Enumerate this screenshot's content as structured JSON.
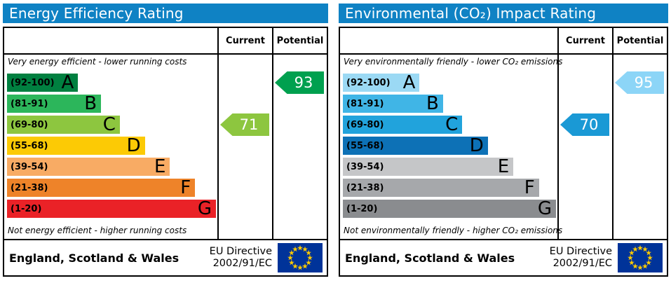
{
  "theme": {
    "header_bg": "#0f82c4",
    "border": "#000000",
    "arrow_text": "#ffffff"
  },
  "chart_data": [
    {
      "type": "bar",
      "title": "Energy Efficiency Rating",
      "categories": [
        "A (92-100)",
        "B (81-91)",
        "C (69-80)",
        "D (55-68)",
        "E (39-54)",
        "F (21-38)",
        "G (1-20)"
      ],
      "scale_range": [
        1,
        100
      ],
      "current": 71,
      "potential": 93,
      "current_band": "C",
      "potential_band": "A",
      "legend_position": "top-right-columns"
    },
    {
      "type": "bar",
      "title": "Environmental (CO₂) Impact Rating",
      "categories": [
        "A (92-100)",
        "B (81-91)",
        "C (69-80)",
        "D (55-68)",
        "E (39-54)",
        "F (21-38)",
        "G (1-20)"
      ],
      "scale_range": [
        1,
        100
      ],
      "current": 70,
      "potential": 95,
      "current_band": "C",
      "potential_band": "A",
      "legend_position": "top-right-columns"
    }
  ],
  "panels": [
    {
      "title": "Energy Efficiency Rating",
      "columns": {
        "current": "Current",
        "potential": "Potential"
      },
      "caption_top": "Very energy efficient - lower running costs",
      "caption_bottom": "Not energy efficient - higher running costs",
      "bands": [
        {
          "range": "(92-100)",
          "letter": "A",
          "color": "#008040",
          "width_pct": 34
        },
        {
          "range": "(81-91)",
          "letter": "B",
          "color": "#2cb65b",
          "width_pct": 45
        },
        {
          "range": "(69-80)",
          "letter": "C",
          "color": "#8dc63f",
          "width_pct": 54
        },
        {
          "range": "(55-68)",
          "letter": "D",
          "color": "#fcca05",
          "width_pct": 66
        },
        {
          "range": "(39-54)",
          "letter": "E",
          "color": "#f8ab64",
          "width_pct": 78
        },
        {
          "range": "(21-38)",
          "letter": "F",
          "color": "#ee8329",
          "width_pct": 90
        },
        {
          "range": "(1-20)",
          "letter": "G",
          "color": "#ea2227",
          "width_pct": 100
        }
      ],
      "current": {
        "value": "71",
        "color": "#8dc63f",
        "band_index": 2
      },
      "potential": {
        "value": "93",
        "color": "#00a04f",
        "band_index": 0
      },
      "footer": {
        "region": "England, Scotland & Wales",
        "directive": [
          "EU Directive",
          "2002/91/EC"
        ],
        "flag": {
          "field": "#003399",
          "stars": "#ffcc00"
        }
      }
    },
    {
      "title": "Environmental (CO₂) Impact Rating",
      "columns": {
        "current": "Current",
        "potential": "Potential"
      },
      "caption_top": "Very environmentally friendly - lower CO₂ emissions",
      "caption_bottom": "Not environmentally friendly - higher CO₂ emissions",
      "bands": [
        {
          "range": "(92-100)",
          "letter": "A",
          "color": "#9bd9f4",
          "width_pct": 36
        },
        {
          "range": "(81-91)",
          "letter": "B",
          "color": "#40b5e6",
          "width_pct": 47
        },
        {
          "range": "(69-80)",
          "letter": "C",
          "color": "#21a3dc",
          "width_pct": 56
        },
        {
          "range": "(55-68)",
          "letter": "D",
          "color": "#0d71b6",
          "width_pct": 68
        },
        {
          "range": "(39-54)",
          "letter": "E",
          "color": "#c5c6c8",
          "width_pct": 80
        },
        {
          "range": "(21-38)",
          "letter": "F",
          "color": "#a6a8ab",
          "width_pct": 92
        },
        {
          "range": "(1-20)",
          "letter": "G",
          "color": "#8a8c8f",
          "width_pct": 100
        }
      ],
      "current": {
        "value": "70",
        "color": "#1a99d5",
        "band_index": 2
      },
      "potential": {
        "value": "95",
        "color": "#8cd5f7",
        "band_index": 0
      },
      "footer": {
        "region": "England, Scotland & Wales",
        "directive": [
          "EU Directive",
          "2002/91/EC"
        ],
        "flag": {
          "field": "#003399",
          "stars": "#ffcc00"
        }
      }
    }
  ]
}
